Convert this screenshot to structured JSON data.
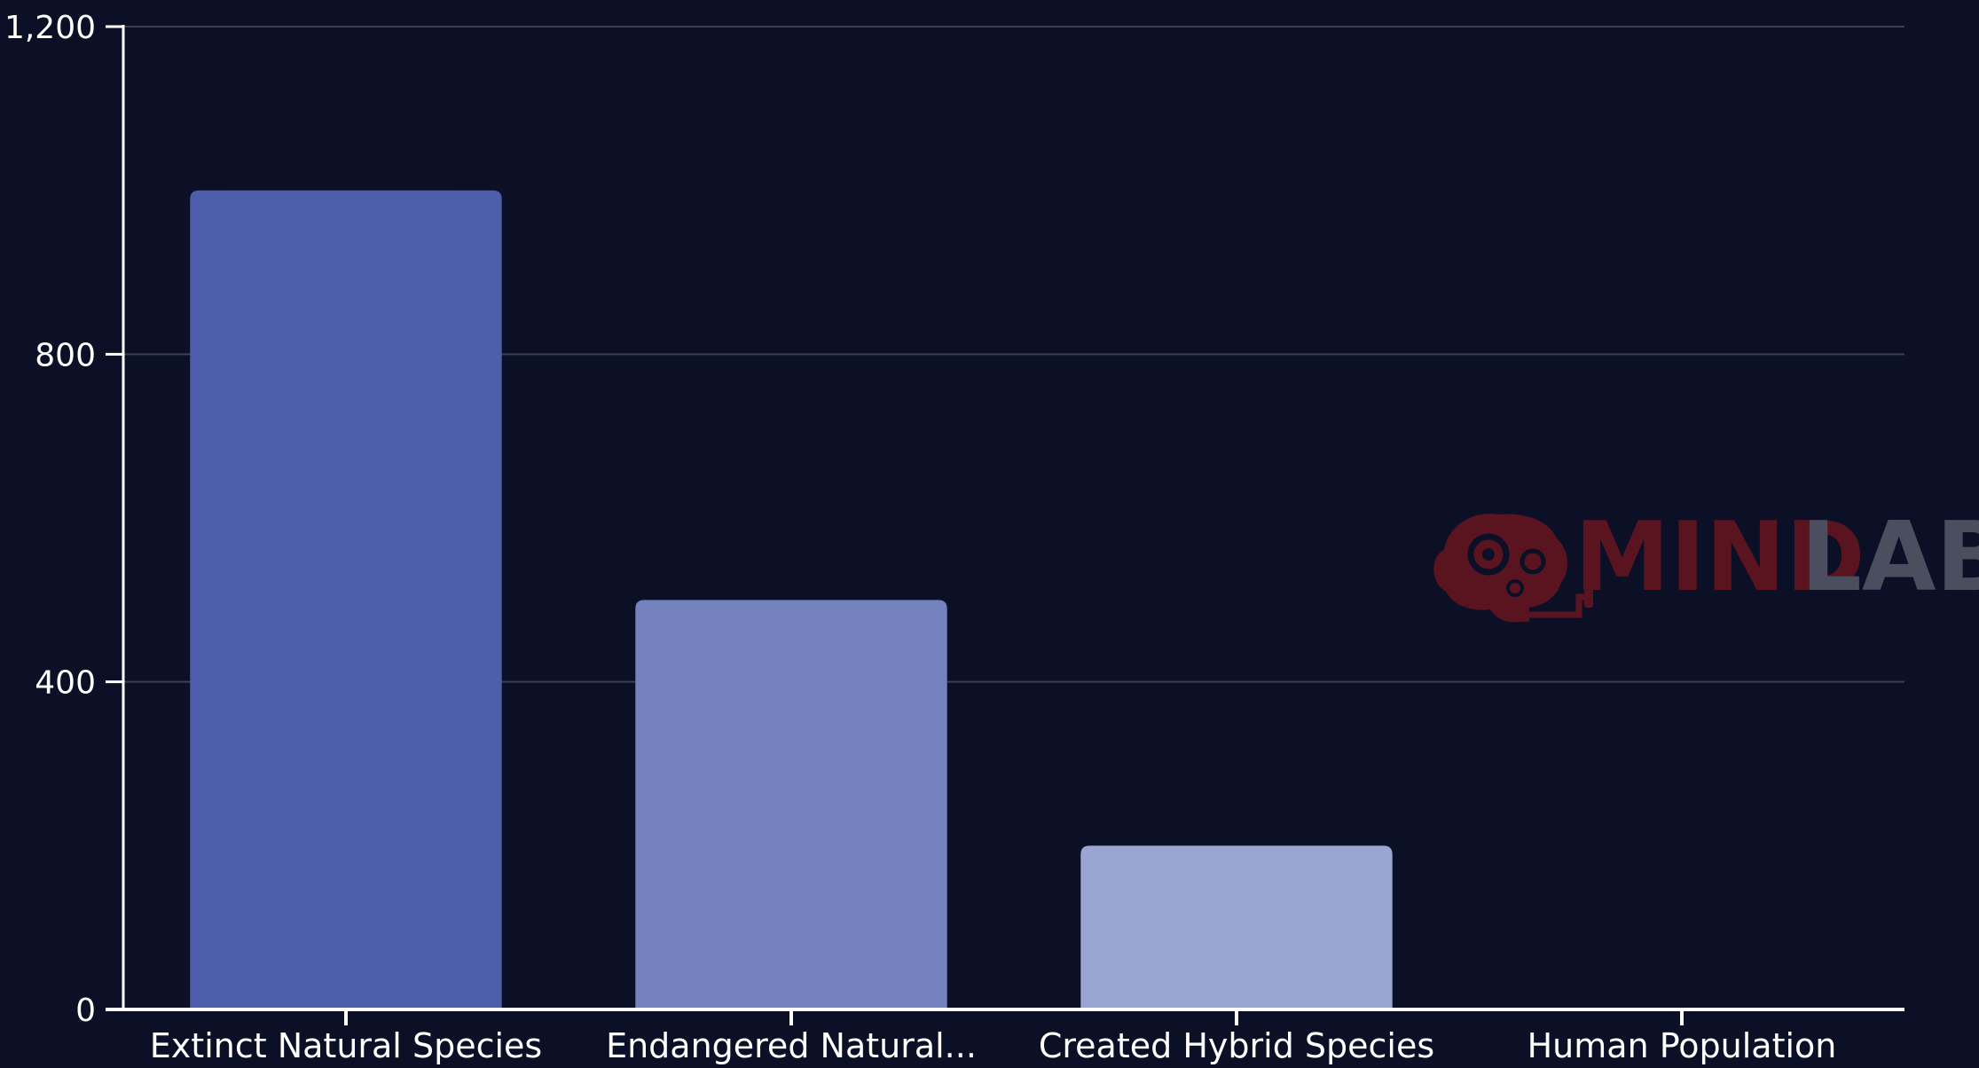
{
  "chart_data": {
    "type": "bar",
    "categories": [
      "Extinct Natural Species",
      "Endangered Natural...",
      "Created Hybrid Species",
      "Human Population"
    ],
    "values": [
      1000,
      500,
      200,
      0
    ],
    "ylim": [
      0,
      1200
    ],
    "y_ticks": [
      0,
      400,
      800,
      1200
    ],
    "y_tick_labels": [
      "0",
      "400",
      "800",
      "1,200"
    ],
    "grid": true,
    "bar_colors": [
      "#4d5fab",
      "#7382bd",
      "#9ba5d1",
      "#c3c9e6"
    ],
    "title": "",
    "xlabel": "",
    "ylabel": ""
  },
  "watermark": {
    "text_left": "MIND",
    "text_right": "LAB",
    "color_left": "#5a1420",
    "color_right": "#4b4e5e"
  },
  "colors": {
    "background": "#0b1026",
    "axis": "#ffffff",
    "grid": "#3a3f55",
    "text": "#ffffff"
  }
}
